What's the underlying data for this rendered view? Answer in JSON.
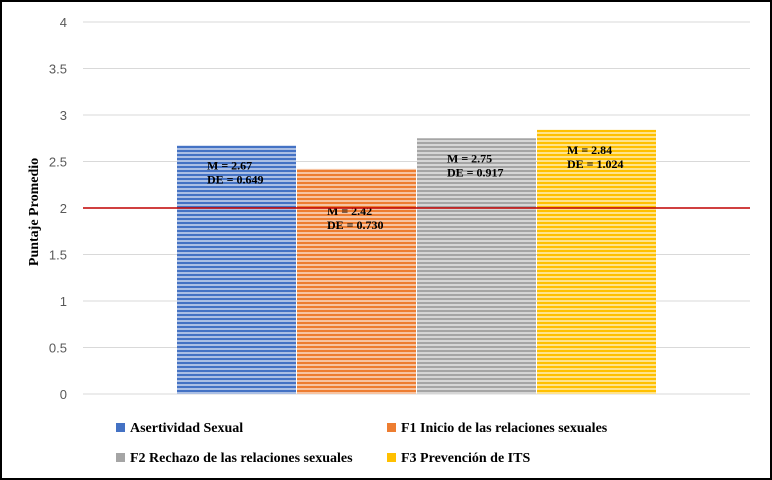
{
  "chart_data": {
    "type": "bar",
    "title": "",
    "xlabel": "",
    "ylabel": "Puntaje Promedio",
    "ylim": [
      0,
      4
    ],
    "yticks": [
      "0",
      "0.5",
      "1",
      "1.5",
      "2",
      "2.5",
      "3",
      "3.5",
      "4"
    ],
    "grid": true,
    "legend_position": "bottom",
    "reference_line": {
      "value": 2,
      "color": "#c00000"
    },
    "series": [
      {
        "name": "Asertividad Sexual",
        "value": 2.67,
        "color": "#4472c4",
        "label_m": "M = 2.67",
        "label_de": "DE = 0.649"
      },
      {
        "name": "F1 Inicio de las relaciones sexuales",
        "value": 2.42,
        "color": "#ed7d31",
        "label_m": "M = 2.42",
        "label_de": "DE = 0.730"
      },
      {
        "name": "F2 Rechazo de las relaciones sexuales",
        "value": 2.75,
        "color": "#a5a5a5",
        "label_m": "M = 2.75",
        "label_de": "DE = 0.917"
      },
      {
        "name": "F3 Prevención de ITS",
        "value": 2.84,
        "color": "#ffc000",
        "label_m": "M = 2.84",
        "label_de": "DE = 1.024"
      }
    ]
  }
}
